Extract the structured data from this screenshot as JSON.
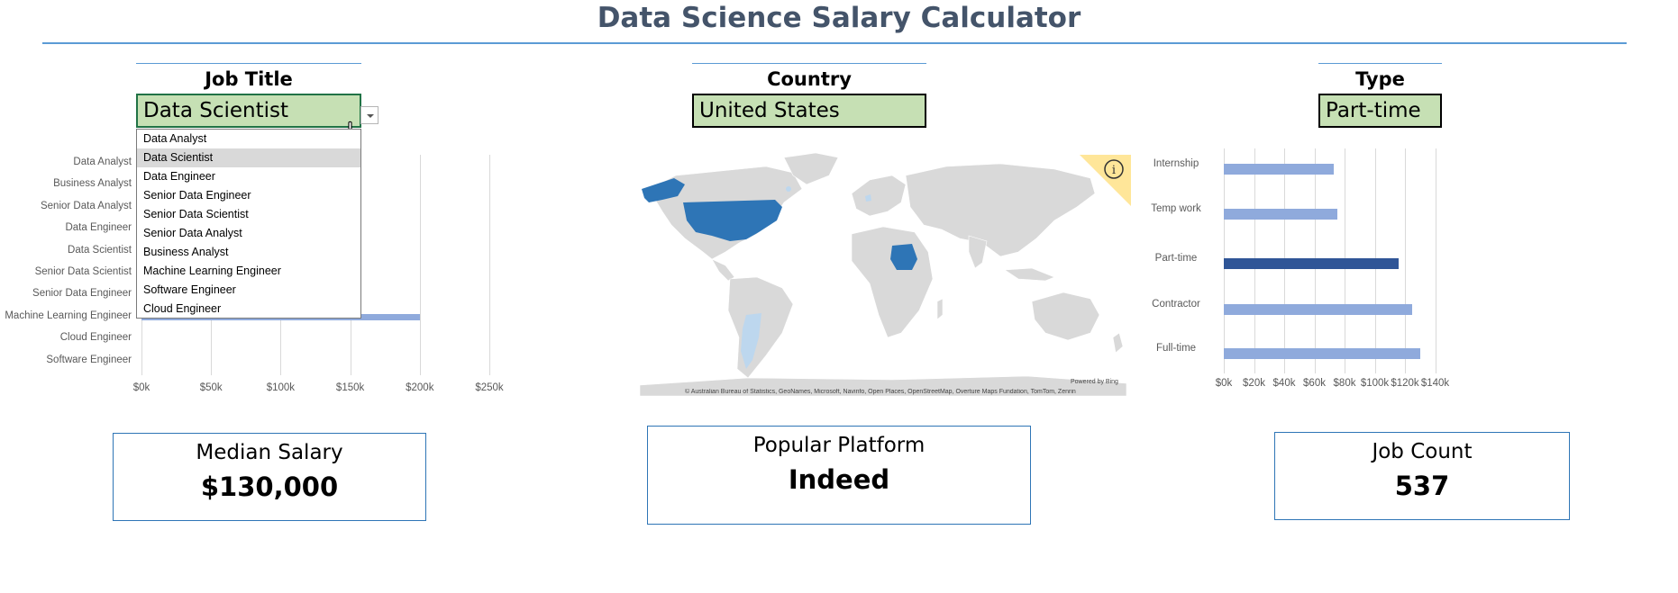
{
  "title": "Data Science Salary Calculator",
  "job_selector": {
    "label": "Job Title",
    "value": "Data Scientist",
    "options": [
      "Data Analyst",
      "Data Scientist",
      "Data Engineer",
      "Senior Data Engineer",
      "Senior Data Scientist",
      "Senior Data Analyst",
      "Business Analyst",
      "Machine Learning Engineer",
      "Software Engineer",
      "Cloud Engineer"
    ],
    "selected_option": "Data Scientist"
  },
  "country_selector": {
    "label": "Country",
    "value": "United States"
  },
  "type_selector": {
    "label": "Type",
    "value": "Part-time"
  },
  "chart_data": [
    {
      "type": "bar",
      "orientation": "horizontal",
      "categories": [
        "Data Analyst",
        "Business Analyst",
        "Senior Data Analyst",
        "Data Engineer",
        "Data Scientist",
        "Senior Data Scientist",
        "Senior Data Engineer",
        "Machine Learning Engineer",
        "Cloud Engineer",
        "Software Engineer"
      ],
      "visible_values": {
        "Machine Learning Engineer": 200000
      },
      "note_hidden": "Other bars hidden behind dropdown list",
      "xticks": [
        "$0k",
        "$50k",
        "$100k",
        "$150k",
        "$200k",
        "$250k"
      ],
      "xlim": [
        0,
        250000
      ]
    },
    {
      "type": "bar",
      "orientation": "horizontal",
      "categories": [
        "Internship",
        "Temp work",
        "Part-time",
        "Contractor",
        "Full-time"
      ],
      "values": [
        73000,
        75000,
        116000,
        125000,
        130000
      ],
      "highlighted": "Part-time",
      "xticks": [
        "$0k",
        "$20k",
        "$40k",
        "$60k",
        "$80k",
        "$100k",
        "$120k",
        "$140k"
      ],
      "xlim": [
        0,
        140000
      ]
    }
  ],
  "map": {
    "powered_by": "Powered by Bing",
    "attribution": "© Australian Bureau of Statistics, GeoNames, Microsoft, Navinfo, Open Places, OpenStreetMap, Overture Maps Fundation, TomTom, Zenrin",
    "info_icon": "info-icon",
    "colors": {
      "land": "#d9d9d9",
      "selected": "#2e75b6",
      "light": "#bdd7ee"
    }
  },
  "kpis": {
    "median_salary": {
      "label": "Median Salary",
      "value": "$130,000"
    },
    "popular_platform": {
      "label": "Popular Platform",
      "value": "Indeed"
    },
    "job_count": {
      "label": "Job Count",
      "value": "537"
    }
  },
  "colors": {
    "accent": "#5b9bd5",
    "bar": "#8faadc",
    "bar_highlight": "#2f5597",
    "selector_fill": "#c6e0b4",
    "title": "#44546a"
  }
}
